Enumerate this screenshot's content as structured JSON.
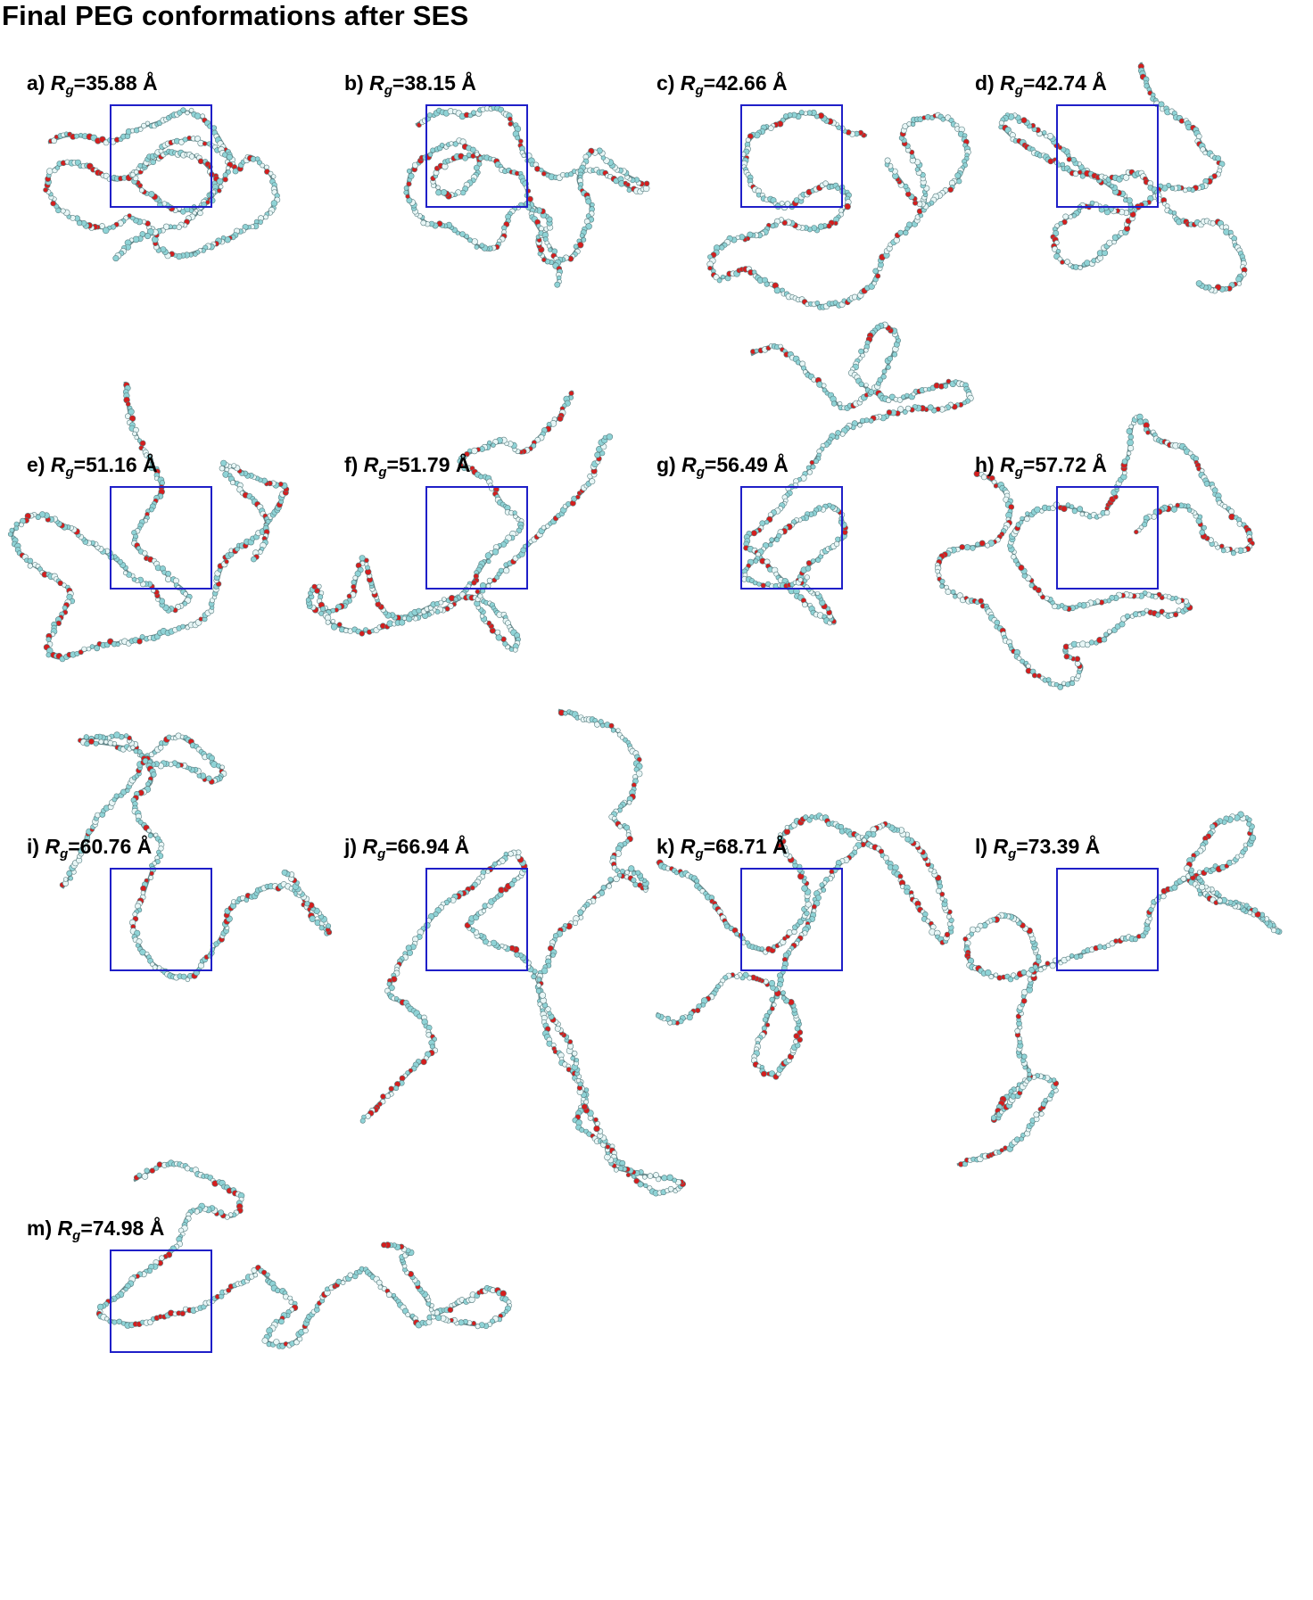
{
  "title": "Final PEG conformations after SES",
  "colors": {
    "box": "#1f1fc8",
    "carbon": "#8fd3d6",
    "hydrogen": "#e8f6f6",
    "oxygen": "#d41e1e",
    "bond": "#6a8c8e"
  },
  "panels": [
    {
      "id": "a",
      "letter": "a)",
      "rg_value": "=35.88 Å"
    },
    {
      "id": "b",
      "letter": "b)",
      "rg_value": "=38.15 Å"
    },
    {
      "id": "c",
      "letter": "c)",
      "rg_value": "=42.66 Å"
    },
    {
      "id": "d",
      "letter": "d)",
      "rg_value": "=42.74 Å"
    },
    {
      "id": "e",
      "letter": "e)",
      "rg_value": "=51.16 Å"
    },
    {
      "id": "f",
      "letter": "f)",
      "rg_value": "=51.79 Å"
    },
    {
      "id": "g",
      "letter": "g)",
      "rg_value": "=56.49 Å"
    },
    {
      "id": "h",
      "letter": "h)",
      "rg_value": "=57.72 Å"
    },
    {
      "id": "i",
      "letter": "i)",
      "rg_value": "=60.76 Å"
    },
    {
      "id": "j",
      "letter": "j)",
      "rg_value": "=66.94 Å"
    },
    {
      "id": "k",
      "letter": "k)",
      "rg_value": "=68.71 Å"
    },
    {
      "id": "l",
      "letter": "l)",
      "rg_value": "=73.39 Å"
    },
    {
      "id": "m",
      "letter": "m)",
      "rg_value": "=74.98 Å"
    }
  ],
  "rg_symbol": "R",
  "rg_subscript": "g"
}
